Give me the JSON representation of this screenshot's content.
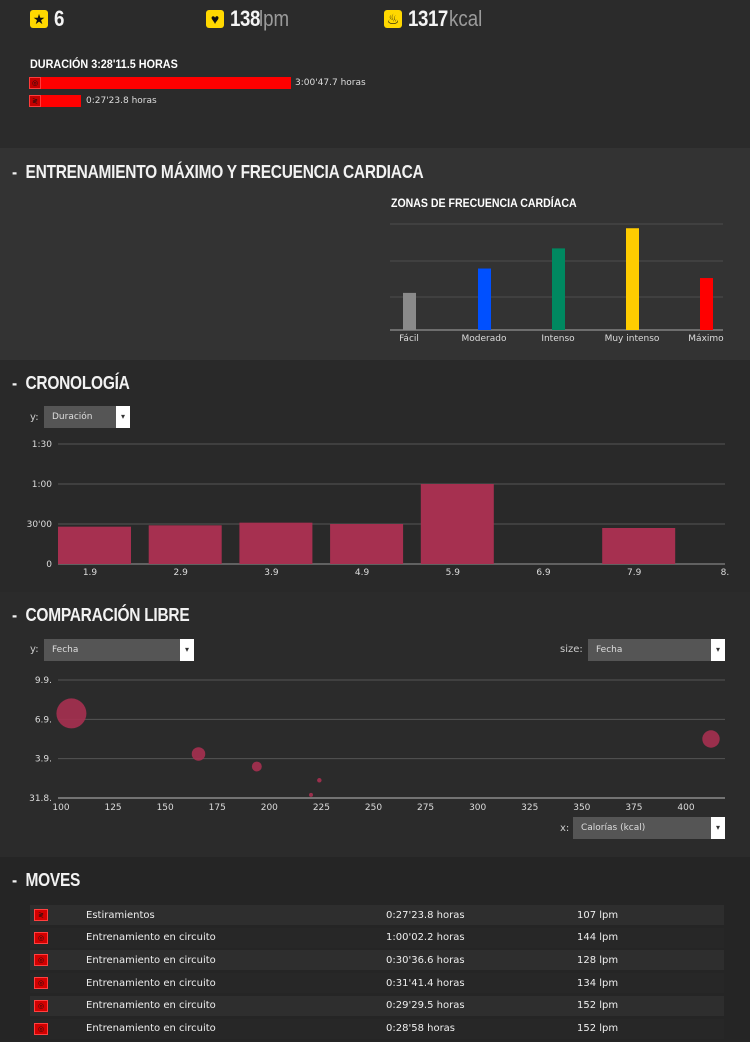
{
  "summary": {
    "stars": "6",
    "heart_value": "138",
    "heart_unit": "lpm",
    "kcal_value": "1317",
    "kcal_unit": "kcal",
    "duration_label": "DURACIÓN 3:28'11.5 HORAS",
    "bars": [
      {
        "icon": "circuit-icon",
        "text": "3:00'47.7 horas",
        "fraction": 0.867
      },
      {
        "icon": "stretch-icon",
        "text": "0:27'23.8 horas",
        "fraction": 0.133
      }
    ]
  },
  "section1": {
    "title": "ENTRENAMIENTO MÁXIMO Y FRECUENCIA CARDIACA",
    "chart_title": "ZONAS DE FRECUENCIA CARDÍACA"
  },
  "section2": {
    "title": "CRONOLOGÍA",
    "y_label": "y:",
    "y_select": "Duración"
  },
  "section3": {
    "title": "COMPARACIÓN LIBRE",
    "y_label": "y:",
    "y_select": "Fecha",
    "size_label": "size:",
    "size_select": "Fecha",
    "x_label": "x:",
    "x_select": "Calorías (kcal)"
  },
  "section4": {
    "title": "MOVES",
    "rows": [
      {
        "icon": "stretch-icon",
        "name": "Estiramientos",
        "duration": "0:27'23.8 horas",
        "hr": "107 lpm"
      },
      {
        "icon": "circuit-icon",
        "name": "Entrenamiento en circuito",
        "duration": "1:00'02.2 horas",
        "hr": "144 lpm"
      },
      {
        "icon": "circuit-icon",
        "name": "Entrenamiento en circuito",
        "duration": "0:30'36.6 horas",
        "hr": "128 lpm"
      },
      {
        "icon": "circuit-icon",
        "name": "Entrenamiento en circuito",
        "duration": "0:31'41.4 horas",
        "hr": "134 lpm"
      },
      {
        "icon": "circuit-icon",
        "name": "Entrenamiento en circuito",
        "duration": "0:29'29.5 horas",
        "hr": "152 lpm"
      },
      {
        "icon": "circuit-icon",
        "name": "Entrenamiento en circuito",
        "duration": "0:28'58 horas",
        "hr": "152 lpm"
      }
    ]
  },
  "chart_data": [
    {
      "type": "bar",
      "title": "ZONAS DE FRECUENCIA CARDÍACA",
      "categories": [
        "Fácil",
        "Moderado",
        "Intenso",
        "Muy intenso",
        "Máximo"
      ],
      "values": [
        0.35,
        0.58,
        0.77,
        0.96,
        0.49
      ],
      "colors": [
        "#8a8a8a",
        "#0050ff",
        "#008860",
        "#ffcc00",
        "#ff0000"
      ],
      "ylim": [
        0,
        1
      ],
      "grid": true
    },
    {
      "type": "bar",
      "categories": [
        "1.9",
        "2.9",
        "3.9",
        "4.9",
        "5.9",
        "6.9",
        "7.9",
        "8."
      ],
      "values": [
        28,
        29,
        31,
        30,
        60,
        0,
        27,
        0
      ],
      "value_unit": "minutes",
      "ytick_labels": [
        "0",
        "30'00",
        "1:00",
        "1:30"
      ],
      "ylim": [
        0,
        90
      ],
      "color": "#a63050",
      "grid": true
    },
    {
      "type": "scatter",
      "x_ticks": [
        "100",
        "125",
        "150",
        "175",
        "200",
        "225",
        "250",
        "275",
        "300",
        "325",
        "350",
        "375",
        "400"
      ],
      "y_ticks": [
        "31.8.",
        "3.9.",
        "6.9.",
        "9.9."
      ],
      "xlim": [
        100,
        415
      ],
      "ylim": [
        0,
        3
      ],
      "points": [
        {
          "x": 105,
          "y": 2.15,
          "size": 1.0
        },
        {
          "x": 166,
          "y": 1.12,
          "size": 0.45
        },
        {
          "x": 194,
          "y": 0.8,
          "size": 0.33
        },
        {
          "x": 224,
          "y": 0.45,
          "size": 0.15
        },
        {
          "x": 220,
          "y": 0.08,
          "size": 0.12
        },
        {
          "x": 412,
          "y": 1.5,
          "size": 0.58
        }
      ],
      "color": "#a63050",
      "grid": true
    }
  ]
}
